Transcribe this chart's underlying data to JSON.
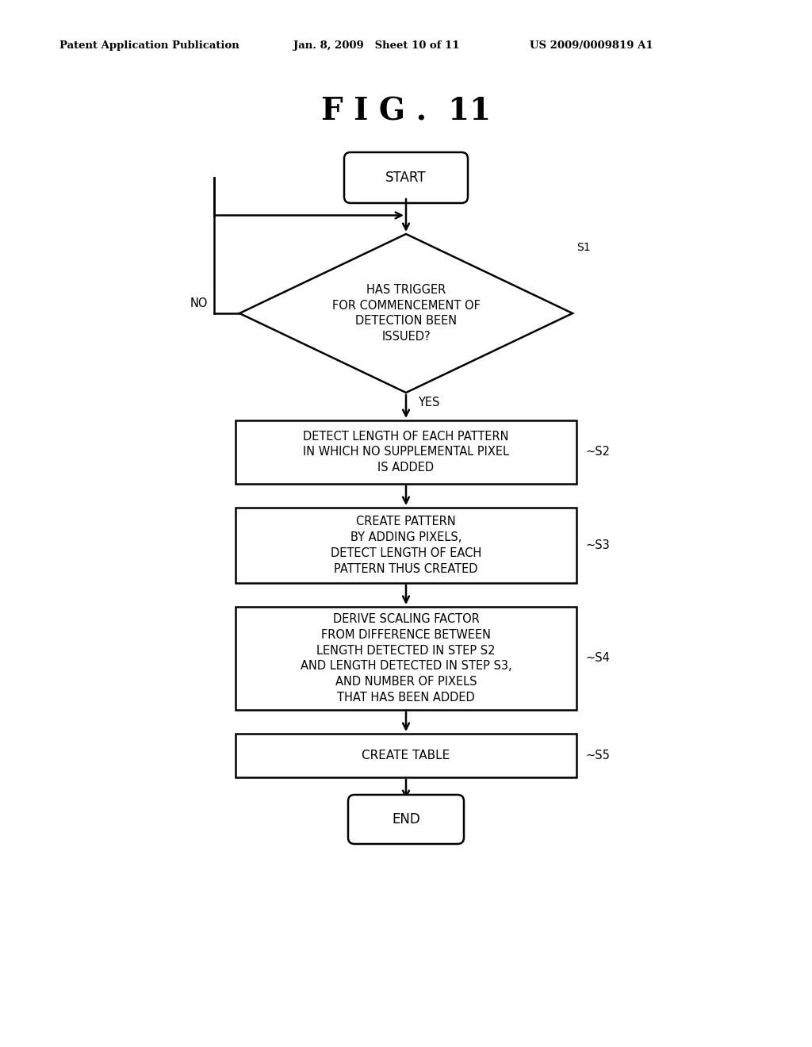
{
  "title": "F I G .  11",
  "header_left": "Patent Application Publication",
  "header_mid": "Jan. 8, 2009   Sheet 10 of 11",
  "header_right": "US 2009/0009819 A1",
  "bg_color": "#ffffff",
  "start_label": "START",
  "end_label": "END",
  "diamond_label": "HAS TRIGGER\nFOR COMMENCEMENT OF\nDETECTION BEEN\nISSUED?",
  "diamond_step": "S1",
  "s2_label": "DETECT LENGTH OF EACH PATTERN\nIN WHICH NO SUPPLEMENTAL PIXEL\nIS ADDED",
  "s2_step": "~S2",
  "s3_label": "CREATE PATTERN\nBY ADDING PIXELS,\nDETECT LENGTH OF EACH\nPATTERN THUS CREATED",
  "s3_step": "~S3",
  "s4_label": "DERIVE SCALING FACTOR\nFROM DIFFERENCE BETWEEN\nLENGTH DETECTED IN STEP S2\nAND LENGTH DETECTED IN STEP S3,\nAND NUMBER OF PIXELS\nTHAT HAS BEEN ADDED",
  "s4_step": "~S4",
  "s5_label": "CREATE TABLE",
  "s5_step": "~S5",
  "no_label": "NO",
  "yes_label": "YES"
}
